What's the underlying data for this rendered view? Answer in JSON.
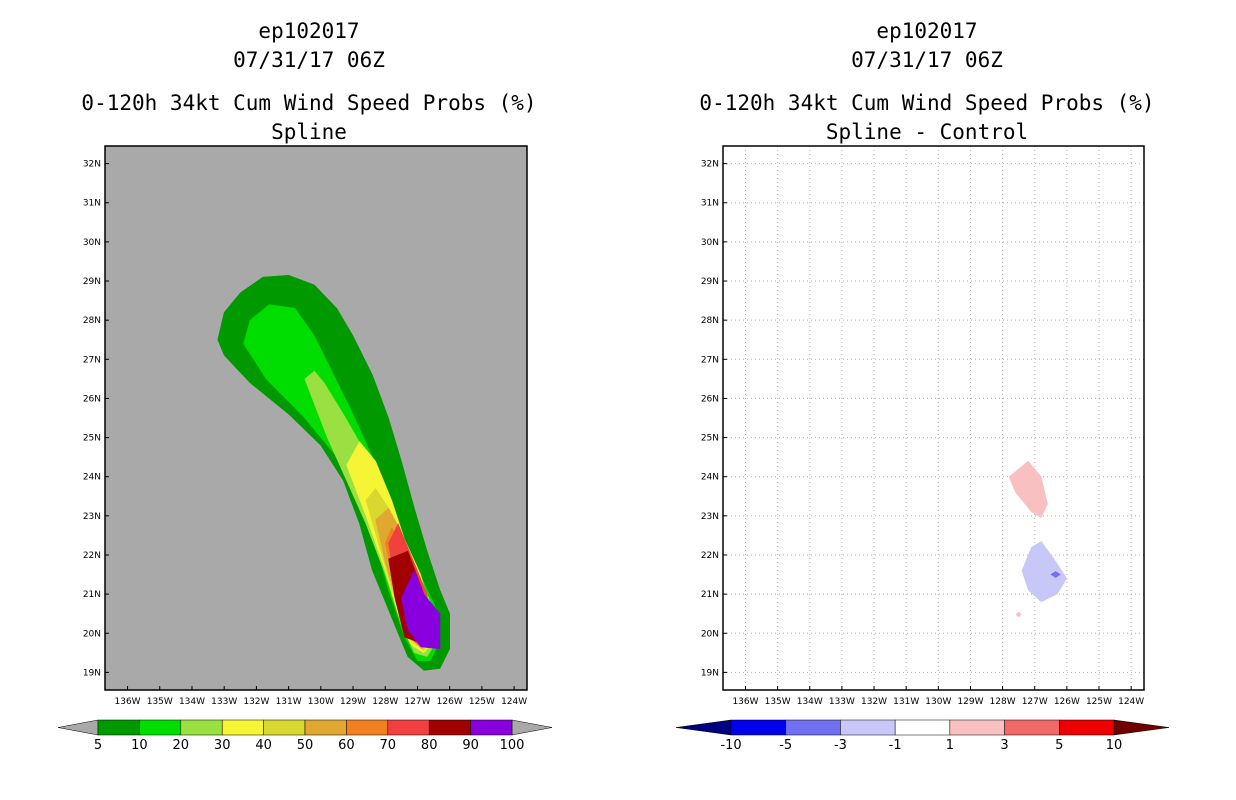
{
  "left": {
    "storm_id": "ep102017",
    "date": "07/31/17 06Z",
    "title": "0-120h 34kt Cum Wind Speed Probs (%)",
    "subtitle": "Spline",
    "background_color": "#a9a9a9"
  },
  "right": {
    "storm_id": "ep102017",
    "date": "07/31/17 06Z",
    "title": "0-120h 34kt Cum Wind Speed Probs (%)",
    "subtitle": "Spline - Control"
  },
  "chart_data": [
    {
      "type": "heatmap",
      "subtitle": "Spline",
      "xlim": [
        -136.7,
        -123.6
      ],
      "ylim": [
        18.55,
        32.45
      ],
      "x_ticks": [
        "136W",
        "135W",
        "134W",
        "133W",
        "132W",
        "131W",
        "130W",
        "129W",
        "128W",
        "127W",
        "126W",
        "125W",
        "124W"
      ],
      "y_ticks": [
        "19N",
        "20N",
        "21N",
        "22N",
        "23N",
        "24N",
        "25N",
        "26N",
        "27N",
        "28N",
        "29N",
        "30N",
        "31N",
        "32N"
      ],
      "grid": false,
      "colorbar": {
        "labels": [
          "5",
          "10",
          "20",
          "30",
          "40",
          "50",
          "60",
          "70",
          "80",
          "90",
          "100"
        ],
        "colors": [
          "#009900",
          "#00dd00",
          "#99e040",
          "#f5f536",
          "#d8d830",
          "#e0a830",
          "#f08020",
          "#f04040",
          "#a00000",
          "#8800dd"
        ]
      },
      "contours": [
        {
          "level": 5,
          "color": "#009900",
          "points": [
            [
              -133.2,
              27.5
            ],
            [
              -133.0,
              28.2
            ],
            [
              -132.5,
              28.7
            ],
            [
              -131.8,
              29.1
            ],
            [
              -131.0,
              29.15
            ],
            [
              -130.2,
              28.9
            ],
            [
              -129.5,
              28.3
            ],
            [
              -129.0,
              27.6
            ],
            [
              -128.4,
              26.6
            ],
            [
              -127.9,
              25.5
            ],
            [
              -127.5,
              24.4
            ],
            [
              -127.1,
              23.2
            ],
            [
              -126.7,
              22.1
            ],
            [
              -126.3,
              21.1
            ],
            [
              -126.0,
              20.5
            ],
            [
              -126.0,
              19.6
            ],
            [
              -126.3,
              19.1
            ],
            [
              -126.8,
              19.05
            ],
            [
              -127.3,
              19.4
            ],
            [
              -127.6,
              20.0
            ],
            [
              -127.9,
              20.6
            ],
            [
              -128.4,
              21.6
            ],
            [
              -128.8,
              22.8
            ],
            [
              -129.3,
              23.9
            ],
            [
              -130.0,
              24.8
            ],
            [
              -131.0,
              25.6
            ],
            [
              -132.2,
              26.4
            ],
            [
              -133.0,
              27.1
            ]
          ]
        },
        {
          "level": 10,
          "color": "#00dd00",
          "points": [
            [
              -132.4,
              27.4
            ],
            [
              -132.2,
              28.0
            ],
            [
              -131.6,
              28.4
            ],
            [
              -130.8,
              28.3
            ],
            [
              -130.2,
              27.6
            ],
            [
              -129.6,
              26.6
            ],
            [
              -129.0,
              25.6
            ],
            [
              -128.4,
              24.5
            ],
            [
              -127.8,
              23.3
            ],
            [
              -127.4,
              22.2
            ],
            [
              -126.8,
              21.3
            ],
            [
              -126.4,
              20.6
            ],
            [
              -126.3,
              19.8
            ],
            [
              -126.6,
              19.3
            ],
            [
              -127.0,
              19.3
            ],
            [
              -127.4,
              19.9
            ],
            [
              -127.9,
              21.1
            ],
            [
              -128.3,
              22.3
            ],
            [
              -128.8,
              23.4
            ],
            [
              -129.5,
              24.5
            ],
            [
              -130.5,
              25.5
            ],
            [
              -131.7,
              26.5
            ]
          ]
        },
        {
          "level": 20,
          "color": "#99e040",
          "points": [
            [
              -130.5,
              26.5
            ],
            [
              -130.2,
              26.7
            ],
            [
              -129.9,
              26.4
            ],
            [
              -129.3,
              25.6
            ],
            [
              -128.6,
              24.6
            ],
            [
              -127.9,
              23.5
            ],
            [
              -127.4,
              22.4
            ],
            [
              -126.9,
              21.4
            ],
            [
              -126.5,
              20.6
            ],
            [
              -126.4,
              19.8
            ],
            [
              -126.7,
              19.4
            ],
            [
              -127.1,
              19.5
            ],
            [
              -127.5,
              20.2
            ],
            [
              -128.0,
              21.5
            ],
            [
              -128.6,
              22.8
            ],
            [
              -129.2,
              23.9
            ],
            [
              -129.8,
              25.0
            ]
          ]
        },
        {
          "level": 30,
          "color": "#f5f536",
          "points": [
            [
              -129.2,
              24.3
            ],
            [
              -128.8,
              24.9
            ],
            [
              -128.3,
              24.4
            ],
            [
              -127.8,
              23.4
            ],
            [
              -127.4,
              22.4
            ],
            [
              -126.9,
              21.5
            ],
            [
              -126.6,
              20.6
            ],
            [
              -126.5,
              19.8
            ],
            [
              -126.8,
              19.5
            ],
            [
              -127.2,
              19.7
            ],
            [
              -127.6,
              20.5
            ],
            [
              -128.0,
              21.6
            ],
            [
              -128.6,
              23.0
            ]
          ]
        },
        {
          "level": 40,
          "color": "#d8d830",
          "points": [
            [
              -128.6,
              23.4
            ],
            [
              -128.3,
              23.7
            ],
            [
              -127.9,
              23.2
            ],
            [
              -127.4,
              22.3
            ],
            [
              -127.0,
              21.5
            ],
            [
              -126.6,
              20.6
            ],
            [
              -126.5,
              19.9
            ],
            [
              -126.8,
              19.55
            ],
            [
              -127.2,
              19.8
            ],
            [
              -127.6,
              20.6
            ],
            [
              -128.0,
              21.7
            ]
          ]
        },
        {
          "level": 50,
          "color": "#e0a830",
          "points": [
            [
              -128.3,
              22.9
            ],
            [
              -127.9,
              23.2
            ],
            [
              -127.5,
              22.6
            ],
            [
              -127.1,
              21.6
            ],
            [
              -126.6,
              20.6
            ],
            [
              -126.55,
              19.9
            ],
            [
              -126.85,
              19.6
            ],
            [
              -127.2,
              19.85
            ],
            [
              -127.6,
              20.7
            ],
            [
              -128.0,
              21.8
            ]
          ]
        },
        {
          "level": 60,
          "color": "#f08020",
          "points": [
            [
              -128.0,
              22.3
            ],
            [
              -127.8,
              22.7
            ],
            [
              -127.4,
              22.1
            ],
            [
              -126.9,
              21.2
            ],
            [
              -126.6,
              20.5
            ],
            [
              -126.6,
              19.9
            ],
            [
              -126.9,
              19.65
            ],
            [
              -127.25,
              19.9
            ],
            [
              -127.6,
              20.8
            ]
          ]
        },
        {
          "level": 70,
          "color": "#f04040",
          "points": [
            [
              -127.9,
              22.3
            ],
            [
              -127.6,
              22.8
            ],
            [
              -127.2,
              22.0
            ],
            [
              -126.7,
              21.0
            ],
            [
              -126.6,
              20.1
            ],
            [
              -126.9,
              19.7
            ],
            [
              -127.3,
              19.9
            ],
            [
              -127.6,
              20.8
            ]
          ]
        },
        {
          "level": 80,
          "color": "#a00000",
          "points": [
            [
              -127.9,
              21.9
            ],
            [
              -127.3,
              22.1
            ],
            [
              -126.8,
              21.0
            ],
            [
              -126.6,
              20.1
            ],
            [
              -126.9,
              19.75
            ],
            [
              -127.4,
              19.9
            ],
            [
              -127.7,
              20.9
            ]
          ]
        },
        {
          "level": 90,
          "color": "#8800dd",
          "points": [
            [
              -127.1,
              21.6
            ],
            [
              -126.8,
              21.0
            ],
            [
              -126.3,
              20.5
            ],
            [
              -126.3,
              19.6
            ],
            [
              -126.9,
              19.65
            ],
            [
              -127.3,
              20.1
            ],
            [
              -127.5,
              20.9
            ]
          ]
        }
      ]
    },
    {
      "type": "heatmap",
      "subtitle": "Spline - Control",
      "xlim": [
        -136.7,
        -123.6
      ],
      "ylim": [
        18.55,
        32.45
      ],
      "x_ticks": [
        "136W",
        "135W",
        "134W",
        "133W",
        "132W",
        "131W",
        "130W",
        "129W",
        "128W",
        "127W",
        "126W",
        "125W",
        "124W"
      ],
      "y_ticks": [
        "19N",
        "20N",
        "21N",
        "22N",
        "23N",
        "24N",
        "25N",
        "26N",
        "27N",
        "28N",
        "29N",
        "30N",
        "31N",
        "32N"
      ],
      "grid": true,
      "colorbar": {
        "labels": [
          "-10",
          "-5",
          "-3",
          "-1",
          "1",
          "3",
          "5",
          "10"
        ],
        "colors": [
          "#000080",
          "#0000ee",
          "#7070f0",
          "#c8c8f8",
          "#ffffff",
          "#f8c0c0",
          "#f06868",
          "#ee0000",
          "#700000"
        ]
      },
      "contours": [
        {
          "level": 1,
          "color": "#f8c0c0",
          "points": [
            [
              -127.6,
              23.6
            ],
            [
              -127.8,
              24.0
            ],
            [
              -127.2,
              24.4
            ],
            [
              -126.8,
              24.0
            ],
            [
              -126.6,
              23.3
            ],
            [
              -126.8,
              22.95
            ],
            [
              -127.1,
              23.1
            ]
          ]
        },
        {
          "level": -1,
          "color": "#c8c8f8",
          "points": [
            [
              -127.4,
              21.6
            ],
            [
              -127.1,
              22.2
            ],
            [
              -126.8,
              22.35
            ],
            [
              -126.4,
              21.9
            ],
            [
              -126.0,
              21.4
            ],
            [
              -126.3,
              21.0
            ],
            [
              -126.8,
              20.8
            ],
            [
              -127.2,
              21.1
            ]
          ]
        },
        {
          "level": -3,
          "color": "#7070f0",
          "points": [
            [
              -126.5,
              21.5
            ],
            [
              -126.35,
              21.58
            ],
            [
              -126.2,
              21.5
            ],
            [
              -126.35,
              21.42
            ]
          ]
        },
        {
          "level": 1,
          "color": "#f8c0c0",
          "points": [
            [
              -127.5,
              20.55
            ],
            [
              -127.42,
              20.48
            ],
            [
              -127.5,
              20.41
            ],
            [
              -127.58,
              20.48
            ]
          ]
        }
      ]
    }
  ]
}
